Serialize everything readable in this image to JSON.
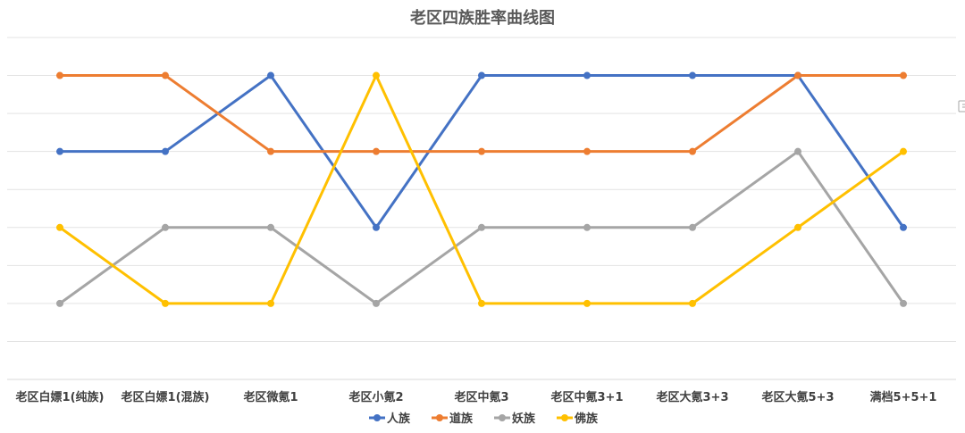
{
  "chart_data": {
    "type": "line",
    "title": "老区四族胜率曲线图",
    "xlabel": "",
    "ylabel": "",
    "categories": [
      "老区白嫖1(纯族)",
      "老区白嫖1(混族)",
      "老区微氪1",
      "老区小氪2",
      "老区中氪3",
      "老区中氪3+1",
      "老区大氪3+3",
      "老区大氪5+3",
      "满档5+5+1"
    ],
    "ylim": [
      0,
      9
    ],
    "grid": true,
    "show_y_tick_labels": false,
    "legend_position": "bottom",
    "series": [
      {
        "name": "人族",
        "color": "#4472C4",
        "values": [
          6,
          6,
          8,
          4,
          8,
          8,
          8,
          8,
          4
        ]
      },
      {
        "name": "道族",
        "color": "#ED7D31",
        "values": [
          8,
          8,
          6,
          6,
          6,
          6,
          6,
          8,
          8
        ]
      },
      {
        "name": "妖族",
        "color": "#A5A5A5",
        "values": [
          2,
          4,
          4,
          2,
          4,
          4,
          4,
          6,
          2
        ]
      },
      {
        "name": "佛族",
        "color": "#FFC000",
        "values": [
          4,
          2,
          2,
          8,
          2,
          2,
          2,
          4,
          6
        ]
      }
    ]
  }
}
